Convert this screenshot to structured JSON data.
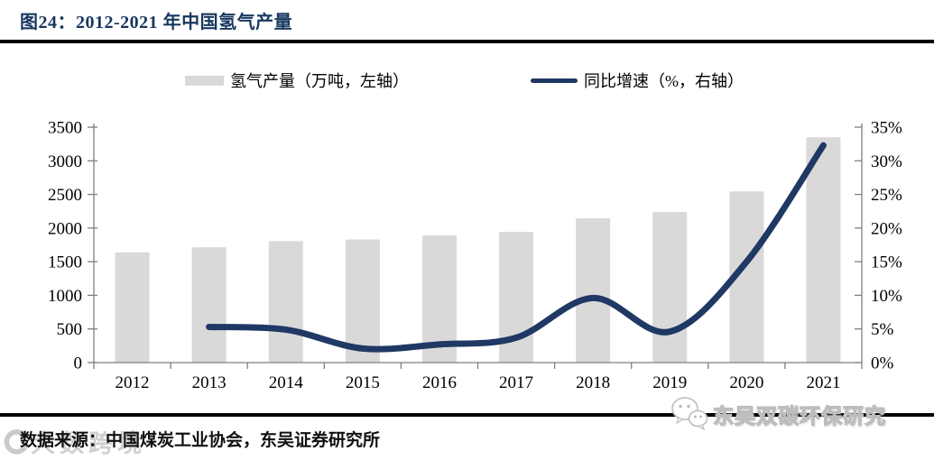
{
  "header": {
    "title": "图24：2012-2021 年中国氢气产量"
  },
  "chart_data": {
    "type": "combo-bar-line",
    "title": "图24：2012-2021 年中国氢气产量",
    "categories": [
      "2012",
      "2013",
      "2014",
      "2015",
      "2016",
      "2017",
      "2018",
      "2019",
      "2020",
      "2021"
    ],
    "series": [
      {
        "name": "氢气产量（万吨，左轴）",
        "type": "bar",
        "axis": "left",
        "color": "#d9d9d9",
        "values": [
          1640,
          1715,
          1805,
          1830,
          1890,
          1945,
          2145,
          2240,
          2545,
          3350
        ]
      },
      {
        "name": "同比增速（%，右轴）",
        "type": "line",
        "axis": "right",
        "color": "#1f3864",
        "values": [
          null,
          5.3,
          4.9,
          2.1,
          2.7,
          3.7,
          9.6,
          4.6,
          15.0,
          32.3
        ]
      }
    ],
    "left_axis": {
      "min": 0,
      "max": 3500,
      "step": 500,
      "ticks": [
        "0",
        "500",
        "1000",
        "1500",
        "2000",
        "2500",
        "3000",
        "3500"
      ]
    },
    "right_axis": {
      "min": 0,
      "max": 35,
      "step": 5,
      "ticks": [
        "0%",
        "5%",
        "10%",
        "15%",
        "20%",
        "25%",
        "30%",
        "35%"
      ]
    },
    "grid": false,
    "legend_position": "top"
  },
  "footer": {
    "source": "数据来源：中国煤炭工业协会，东吴证券研究所"
  },
  "watermarks": {
    "left_text": "大数跨境",
    "right_text": "东吴双碳环保研究"
  },
  "colors": {
    "accent_line": "#1f3864",
    "bar_fill": "#d9d9d9",
    "axis_gray": "#7f7f7f",
    "title_navy": "#17375e",
    "rule_black": "#000000"
  }
}
